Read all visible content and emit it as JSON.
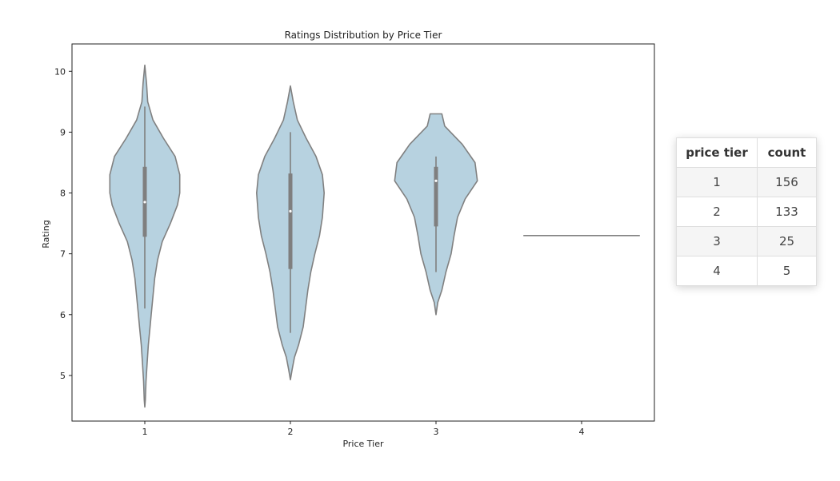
{
  "chart_data": {
    "type": "violin",
    "title": "Ratings Distribution by Price Tier",
    "xlabel": "Price Tier",
    "ylabel": "Rating",
    "categories": [
      "1",
      "2",
      "3",
      "4"
    ],
    "ylim": [
      4.25,
      10.45
    ],
    "yticks": [
      5,
      6,
      7,
      8,
      9,
      10
    ],
    "grid": false,
    "colors": {
      "fill": "#b7d2e0",
      "edge": "#808080",
      "box": "#7f7f7f",
      "median": "#ffffff"
    },
    "violins": [
      {
        "category": "1",
        "box": {
          "q1": 7.28,
          "median": 7.85,
          "q3": 8.43,
          "whisker_low": 6.1,
          "whisker_high": 9.42
        },
        "profile": [
          [
            4.48,
            0.0
          ],
          [
            4.6,
            0.01
          ],
          [
            4.9,
            0.02
          ],
          [
            5.2,
            0.04
          ],
          [
            5.5,
            0.06
          ],
          [
            5.8,
            0.09
          ],
          [
            6.0,
            0.11
          ],
          [
            6.3,
            0.14
          ],
          [
            6.6,
            0.17
          ],
          [
            6.9,
            0.22
          ],
          [
            7.2,
            0.3
          ],
          [
            7.5,
            0.44
          ],
          [
            7.8,
            0.56
          ],
          [
            8.0,
            0.6
          ],
          [
            8.3,
            0.6
          ],
          [
            8.6,
            0.52
          ],
          [
            8.9,
            0.32
          ],
          [
            9.2,
            0.14
          ],
          [
            9.5,
            0.05
          ],
          [
            9.8,
            0.03
          ],
          [
            10.1,
            0.0
          ]
        ]
      },
      {
        "category": "2",
        "box": {
          "q1": 6.75,
          "median": 7.7,
          "q3": 8.32,
          "whisker_low": 5.7,
          "whisker_high": 9.0
        },
        "profile": [
          [
            4.93,
            0.0
          ],
          [
            5.1,
            0.03
          ],
          [
            5.3,
            0.07
          ],
          [
            5.5,
            0.14
          ],
          [
            5.8,
            0.22
          ],
          [
            6.1,
            0.26
          ],
          [
            6.4,
            0.3
          ],
          [
            6.7,
            0.35
          ],
          [
            7.0,
            0.42
          ],
          [
            7.3,
            0.5
          ],
          [
            7.6,
            0.55
          ],
          [
            8.0,
            0.58
          ],
          [
            8.3,
            0.55
          ],
          [
            8.6,
            0.44
          ],
          [
            8.9,
            0.27
          ],
          [
            9.2,
            0.12
          ],
          [
            9.5,
            0.05
          ],
          [
            9.76,
            0.0
          ]
        ]
      },
      {
        "category": "3",
        "box": {
          "q1": 7.45,
          "median": 8.2,
          "q3": 8.43,
          "whisker_low": 6.7,
          "whisker_high": 8.6
        },
        "profile": [
          [
            6.0,
            0.0
          ],
          [
            6.2,
            0.03
          ],
          [
            6.4,
            0.1
          ],
          [
            6.7,
            0.17
          ],
          [
            7.0,
            0.26
          ],
          [
            7.3,
            0.31
          ],
          [
            7.6,
            0.37
          ],
          [
            7.9,
            0.5
          ],
          [
            8.2,
            0.71
          ],
          [
            8.5,
            0.67
          ],
          [
            8.8,
            0.45
          ],
          [
            9.1,
            0.15
          ],
          [
            9.3,
            0.1
          ],
          [
            9.3,
            0.0
          ]
        ]
      },
      {
        "category": "4",
        "flat_line_value": 7.3,
        "profile": []
      }
    ]
  },
  "table": {
    "headers": [
      "price tier",
      "count"
    ],
    "rows": [
      [
        "1",
        "156"
      ],
      [
        "2",
        "133"
      ],
      [
        "3",
        "25"
      ],
      [
        "4",
        "5"
      ]
    ]
  }
}
